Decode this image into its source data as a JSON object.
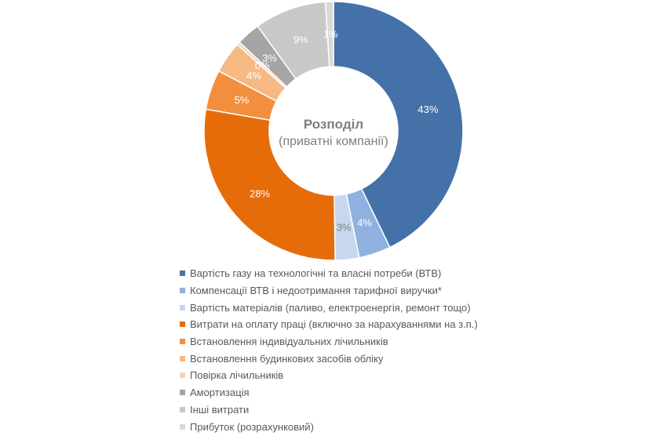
{
  "chart_data": {
    "type": "donut",
    "center_title": "Розподіл",
    "center_subtitle": "(приватні компанії)",
    "legend_position": "bottom",
    "series": [
      {
        "name": "Вартість газу на технологічні та власні потреби (ВТВ)",
        "value": 43,
        "label": "43%",
        "color": "#4472a8",
        "label_color": "#ffffff"
      },
      {
        "name": "Компенсації ВТВ і недоотримання тарифної виручки*",
        "value": 4,
        "label": "4%",
        "color": "#8fb1e0",
        "label_color": "#ffffff"
      },
      {
        "name": "Вартість матеріалів (паливо, електроенергія, ремонт тощо)",
        "value": 3,
        "label": "3%",
        "color": "#c6d7ef",
        "label_color": "#7f7f7f"
      },
      {
        "name": "Витрати на оплату праці (включно за нарахуваннями на з.п.)",
        "value": 28,
        "label": "28%",
        "color": "#e66c0a",
        "label_color": "#ffffff"
      },
      {
        "name": "Встановлення індивідуальних лічильників",
        "value": 5,
        "label": "5%",
        "color": "#f28f3f",
        "label_color": "#ffffff"
      },
      {
        "name": "Встановлення будинкових засобів обліку",
        "value": 4,
        "label": "4%",
        "color": "#f6b983",
        "label_color": "#ffffff"
      },
      {
        "name": "Повірка лічильників",
        "value": 0.4,
        "label": "0%",
        "color": "#f9d2ae",
        "label_color": "#ffffff"
      },
      {
        "name": "Амортизація",
        "value": 3,
        "label": "3%",
        "color": "#a5a5a5",
        "label_color": "#ffffff"
      },
      {
        "name": "Інші витрати",
        "value": 9,
        "label": "9%",
        "color": "#c8c8c8",
        "label_color": "#ffffff"
      },
      {
        "name": "Прибуток (розрахунковий)",
        "value": 1,
        "label": "1%",
        "color": "#d9d9d9",
        "label_color": "#ffffff"
      }
    ]
  }
}
